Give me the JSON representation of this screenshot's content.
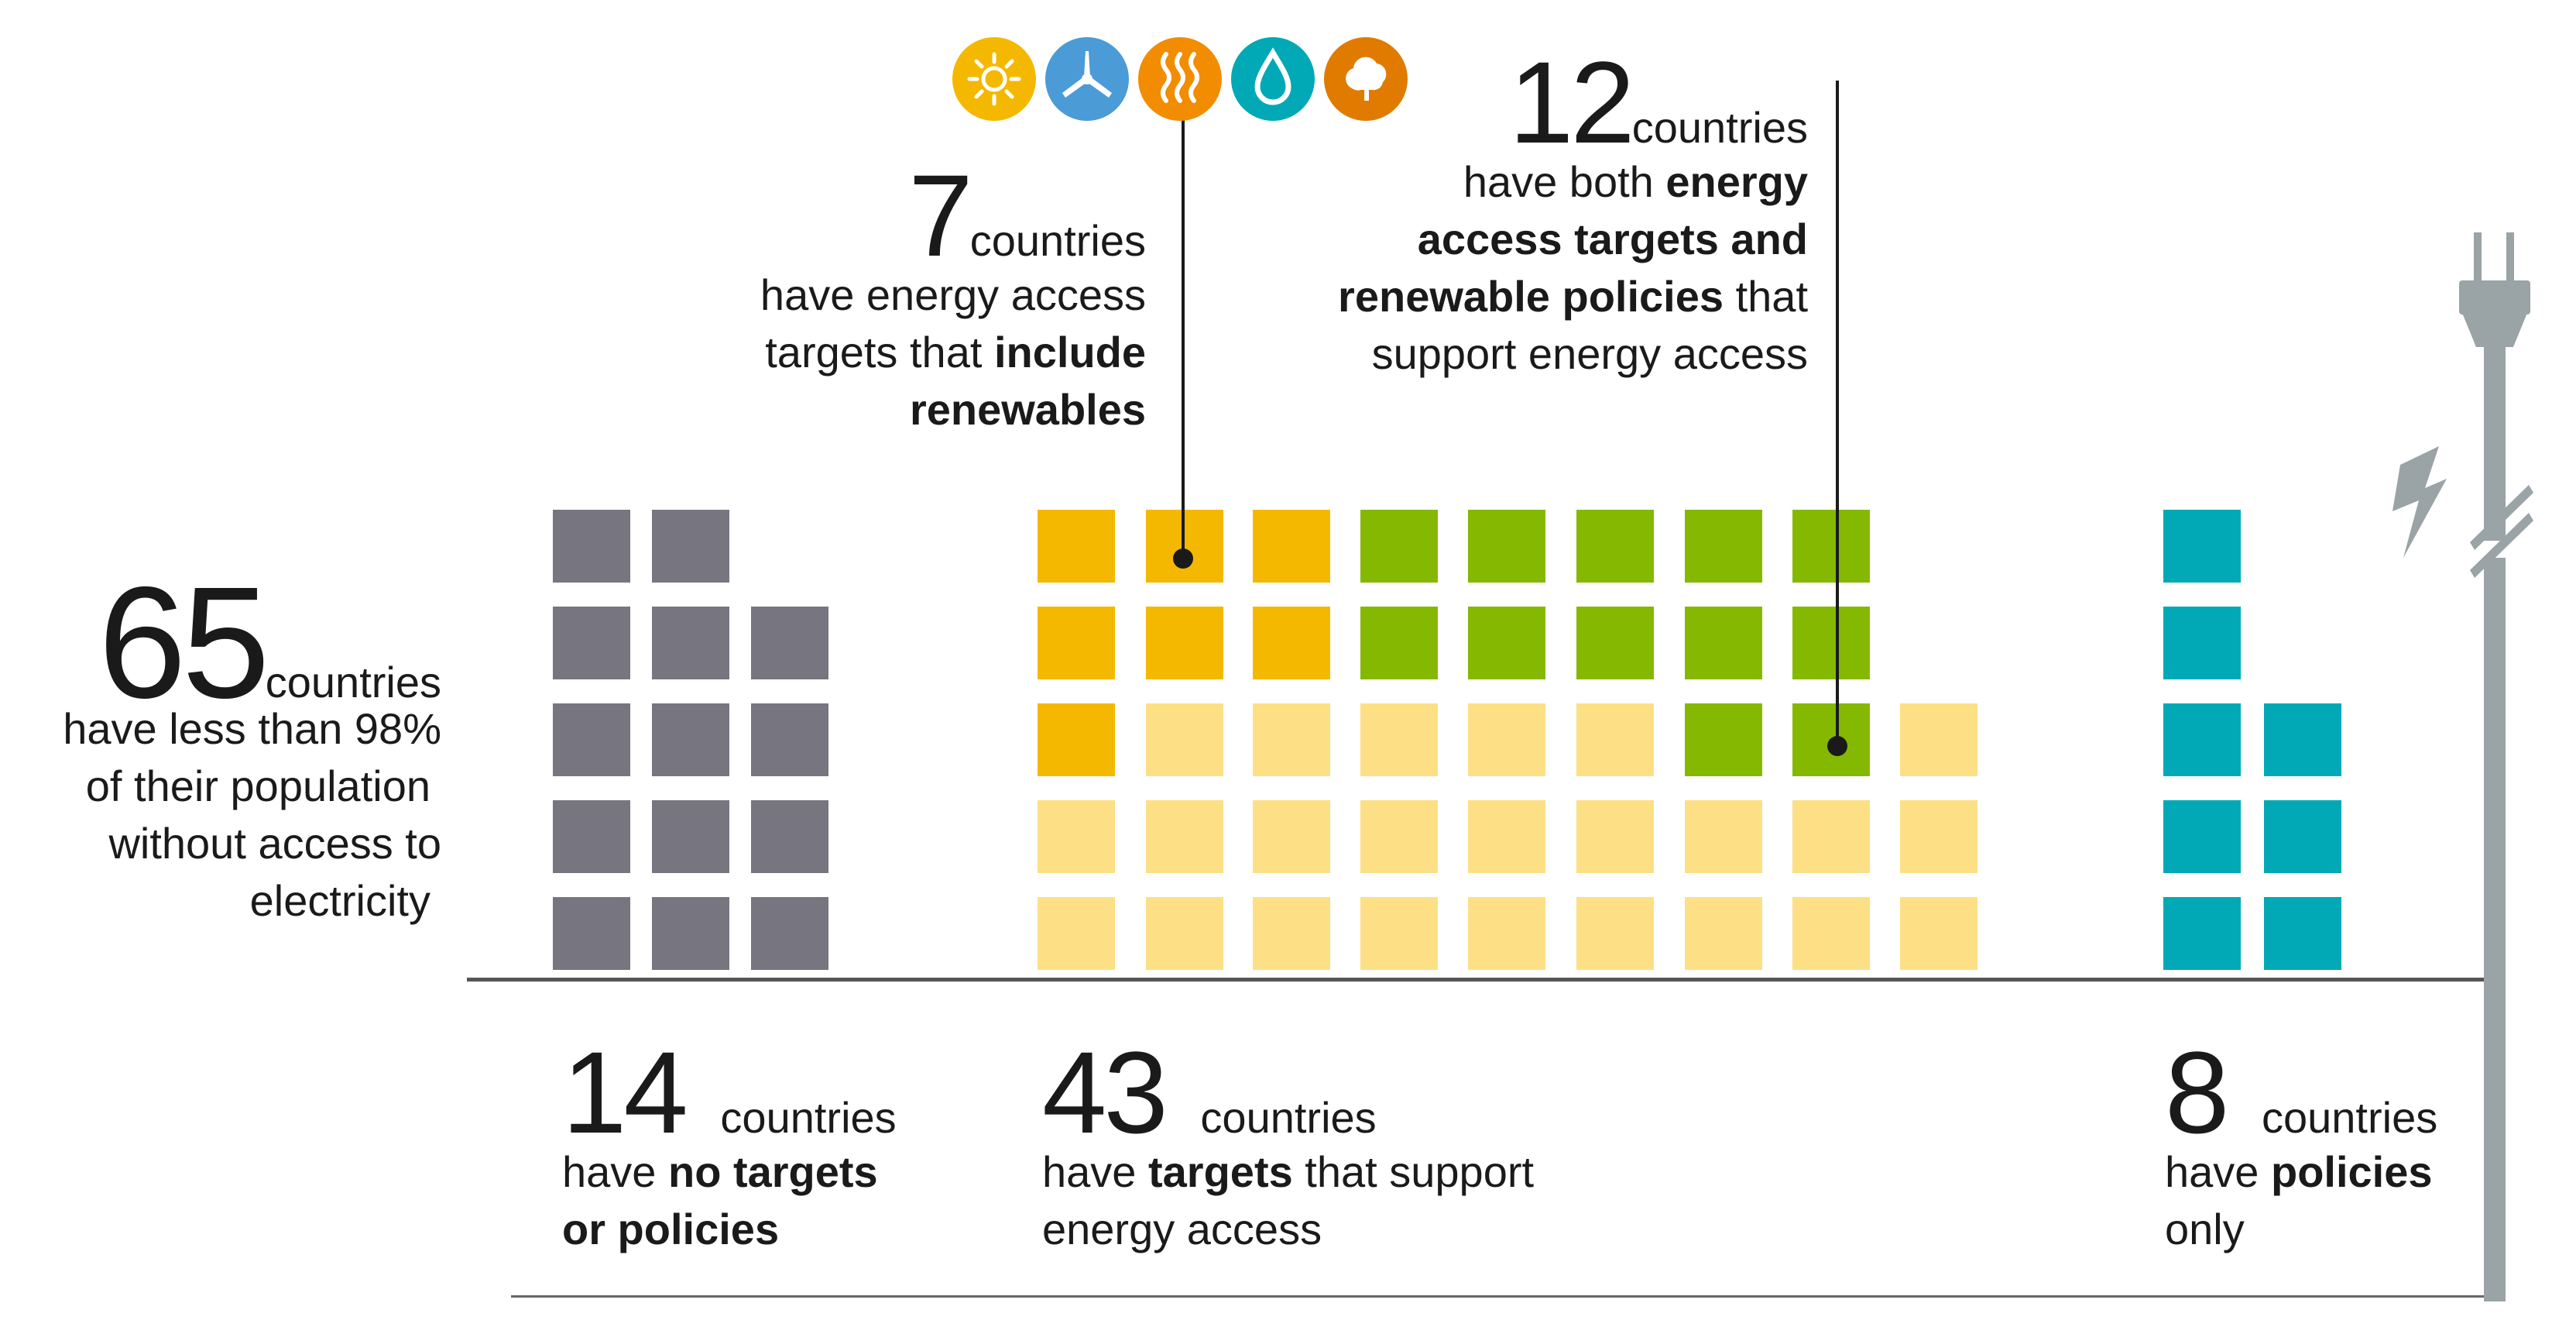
{
  "chart_data": {
    "type": "waffle",
    "groups": [
      {
        "key": "no_targets",
        "count": 14,
        "color": "#77757f"
      },
      {
        "key": "targets_with_renewables",
        "count": 7,
        "color": "#f5b800"
      },
      {
        "key": "targets_and_policies",
        "count": 12,
        "color": "#85b800"
      },
      {
        "key": "other_targets",
        "count": 24,
        "color": "#fde085"
      },
      {
        "key": "policies_only",
        "count": 8,
        "color": "#00a9b5"
      }
    ],
    "total": 65
  },
  "labels": {
    "total": {
      "number": "65",
      "word": "countries",
      "lines": [
        "have less than 98%",
        "of their population",
        "without access to",
        "electricity"
      ]
    },
    "group14": {
      "number": "14",
      "word": "countries",
      "line1_plain": "have ",
      "line1_bold": "no targets",
      "line2_bold": "or policies"
    },
    "group43": {
      "number": "43",
      "word": "countries",
      "line1_plain": "have ",
      "line1_bold": "targets",
      "line1_tail": " that support",
      "line2_plain": "energy access"
    },
    "group8": {
      "number": "8",
      "word": "countries",
      "line1_plain": "have ",
      "line1_bold": "policies",
      "line2_plain": "only"
    },
    "annot7": {
      "number": "7",
      "word": "countries",
      "line1": "have energy access",
      "line2_plain": "targets that ",
      "line2_bold": "include",
      "line3_bold": "renewables"
    },
    "annot12": {
      "number": "12",
      "word": "countries",
      "line1_plain": "have both ",
      "line1_bold": "energy",
      "line2_bold": "access targets and",
      "line3_bold": "renewable policies",
      "line3_tail": " that",
      "line4": "support energy access"
    }
  },
  "icons": [
    {
      "name": "sun-icon",
      "color": "#f5b800"
    },
    {
      "name": "wind-turbine-icon",
      "color": "#4b9bd6"
    },
    {
      "name": "heat-waves-icon",
      "color": "#f28c00"
    },
    {
      "name": "water-drop-icon",
      "color": "#00a9b5"
    },
    {
      "name": "biomass-tree-icon",
      "color": "#e07b00"
    }
  ],
  "colors": {
    "axis": "#555555",
    "plug": "#9aa3a5",
    "text": "#1a1a1a"
  }
}
